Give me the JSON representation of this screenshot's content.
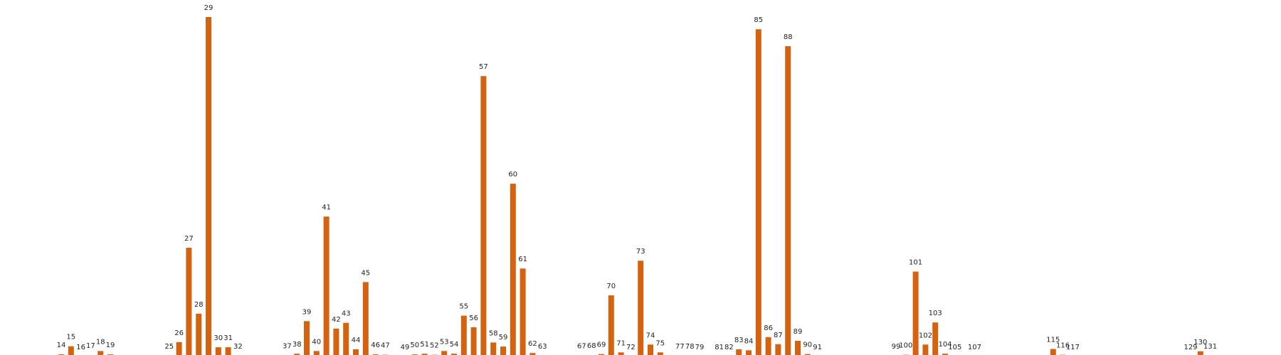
{
  "colors": {
    "bar": "#d4620f",
    "label": "#222222",
    "background": "#ffffff"
  },
  "chart_data": {
    "type": "bar",
    "title": "",
    "xlabel": "",
    "ylabel": "",
    "ylim": [
      0,
      1.0
    ],
    "grid": false,
    "axes_visible": false,
    "categories": [
      "14",
      "15",
      "16",
      "17",
      "18",
      "19",
      "25",
      "26",
      "27",
      "28",
      "29",
      "30",
      "31",
      "32",
      "37",
      "38",
      "39",
      "40",
      "41",
      "42",
      "43",
      "44",
      "45",
      "46",
      "47",
      "49",
      "50",
      "51",
      "52",
      "53",
      "54",
      "55",
      "56",
      "57",
      "58",
      "59",
      "60",
      "61",
      "62",
      "63",
      "67",
      "68",
      "69",
      "70",
      "71",
      "72",
      "73",
      "74",
      "75",
      "77",
      "78",
      "79",
      "81",
      "82",
      "83",
      "84",
      "85",
      "86",
      "87",
      "88",
      "89",
      "90",
      "91",
      "99",
      "100",
      "101",
      "102",
      "103",
      "104",
      "105",
      "107",
      "115",
      "116",
      "117",
      "129",
      "130",
      "131"
    ],
    "values": [
      0.006,
      0.03,
      0,
      0.004,
      0.016,
      0.006,
      0.002,
      0.042,
      0.32,
      0.126,
      1.0,
      0.027,
      0.027,
      0.002,
      0.003,
      0.008,
      0.104,
      0.016,
      0.412,
      0.082,
      0.099,
      0.021,
      0.219,
      0.006,
      0.005,
      0,
      0.006,
      0.008,
      0.005,
      0.016,
      0.008,
      0.12,
      0.086,
      0.826,
      0.041,
      0.029,
      0.509,
      0.259,
      0.01,
      0.002,
      0.003,
      0.004,
      0.007,
      0.18,
      0.012,
      0,
      0.282,
      0.035,
      0.012,
      0.002,
      0.002,
      0,
      0,
      0,
      0.021,
      0.018,
      0.964,
      0.057,
      0.036,
      0.914,
      0.046,
      0.007,
      0,
      0.002,
      0.005,
      0.25,
      0.035,
      0.1,
      0.008,
      0,
      0,
      0.022,
      0.005,
      0,
      0,
      0.015,
      0.002
    ]
  }
}
